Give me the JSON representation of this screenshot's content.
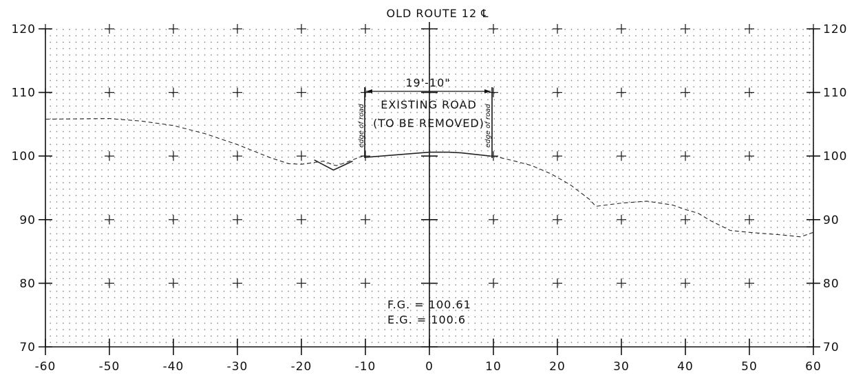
{
  "chart_data": {
    "type": "line",
    "title": "OLD ROUTE 12 ℄",
    "x_ticks": [
      "-60",
      "-50",
      "-40",
      "-30",
      "-20",
      "-10",
      "0",
      "10",
      "20",
      "30",
      "40",
      "50",
      "60"
    ],
    "y_ticks": [
      "70",
      "80",
      "90",
      "100",
      "110",
      "120"
    ],
    "xlim": [
      -60,
      60
    ],
    "ylim": [
      70,
      120
    ],
    "grid": true,
    "series": [
      {
        "style": "dashed",
        "x": [
          -60,
          -50,
          -45,
          -40,
          -35,
          -30,
          -25,
          -22,
          -20,
          -18,
          -16.5,
          -15,
          -14.5,
          -13,
          -11,
          -10
        ],
        "y": [
          105.8,
          105.9,
          105.5,
          104.8,
          103.5,
          101.8,
          99.8,
          98.8,
          98.7,
          99,
          99.2,
          98.6,
          98.5,
          99,
          99.8,
          100.1
        ]
      },
      {
        "style": "dashed",
        "x": [
          10,
          13,
          16,
          19,
          22,
          25,
          26,
          30,
          34,
          38,
          40,
          42,
          44,
          47,
          50,
          55,
          58,
          60
        ],
        "y": [
          100,
          99.3,
          98.5,
          97.2,
          95.5,
          93.2,
          92.1,
          92.6,
          92.9,
          92.3,
          91.6,
          91,
          89.8,
          88.3,
          88,
          87.6,
          87.3,
          88
        ]
      },
      {
        "style": "solid",
        "x": [
          -10,
          -5,
          0,
          3,
          5,
          9.5
        ],
        "y": [
          99.8,
          100.2,
          100.6,
          100.6,
          100.5,
          100
        ]
      },
      {
        "style": "solid",
        "x": [
          -18,
          -15,
          -12
        ],
        "y": [
          99.4,
          97.8,
          99.2
        ]
      }
    ]
  },
  "annotations": {
    "width_dimension": "19'-10\"",
    "existing_road": "EXISTING ROAD",
    "to_be_removed": "(TO BE REMOVED)",
    "edge_left": "edge of road",
    "edge_right": "edge of road",
    "fg_line": "F.G. = 100.61",
    "eg_line": "E.G. = 100.6"
  }
}
